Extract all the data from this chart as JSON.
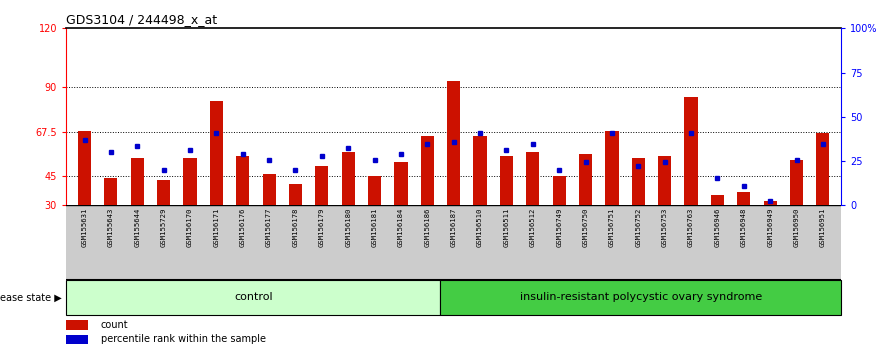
{
  "title": "GDS3104 / 244498_x_at",
  "samples": [
    "GSM155631",
    "GSM155643",
    "GSM155644",
    "GSM155729",
    "GSM156170",
    "GSM156171",
    "GSM156176",
    "GSM156177",
    "GSM156178",
    "GSM156179",
    "GSM156180",
    "GSM156181",
    "GSM156184",
    "GSM156186",
    "GSM156187",
    "GSM156510",
    "GSM156511",
    "GSM156512",
    "GSM156749",
    "GSM156750",
    "GSM156751",
    "GSM156752",
    "GSM156753",
    "GSM156763",
    "GSM156946",
    "GSM156948",
    "GSM156949",
    "GSM156950",
    "GSM156951"
  ],
  "counts": [
    68,
    44,
    54,
    43,
    54,
    83,
    55,
    46,
    41,
    50,
    57,
    45,
    52,
    65,
    93,
    65,
    55,
    57,
    45,
    56,
    68,
    54,
    55,
    85,
    35,
    37,
    32,
    53,
    67
  ],
  "percentile_ranks_left_scale": [
    63,
    57,
    60,
    48,
    58,
    67,
    56,
    53,
    48,
    55,
    59,
    53,
    56,
    61,
    62,
    67,
    58,
    61,
    48,
    52,
    67,
    50,
    52,
    67,
    44,
    40,
    32,
    53,
    61
  ],
  "control_count": 14,
  "disease_count": 15,
  "control_label": "control",
  "disease_label": "insulin-resistant polycystic ovary syndrome",
  "ylim_left": [
    30,
    120
  ],
  "yticks_left": [
    30,
    45,
    67.5,
    90,
    120
  ],
  "ytick_labels_left": [
    "30",
    "45",
    "67.5",
    "90",
    "120"
  ],
  "ylim_right": [
    0,
    100
  ],
  "yticks_right": [
    0,
    25,
    50,
    75,
    100
  ],
  "ytick_labels_right": [
    "0",
    "25",
    "50",
    "75",
    "100%"
  ],
  "hlines": [
    45,
    67.5,
    90
  ],
  "bar_color": "#cc1100",
  "marker_color": "#0000cc",
  "bar_width": 0.5,
  "control_bg": "#ccffcc",
  "disease_bg": "#44cc44",
  "tick_bg": "#cccccc",
  "legend_count_label": "count",
  "legend_pct_label": "percentile rank within the sample"
}
